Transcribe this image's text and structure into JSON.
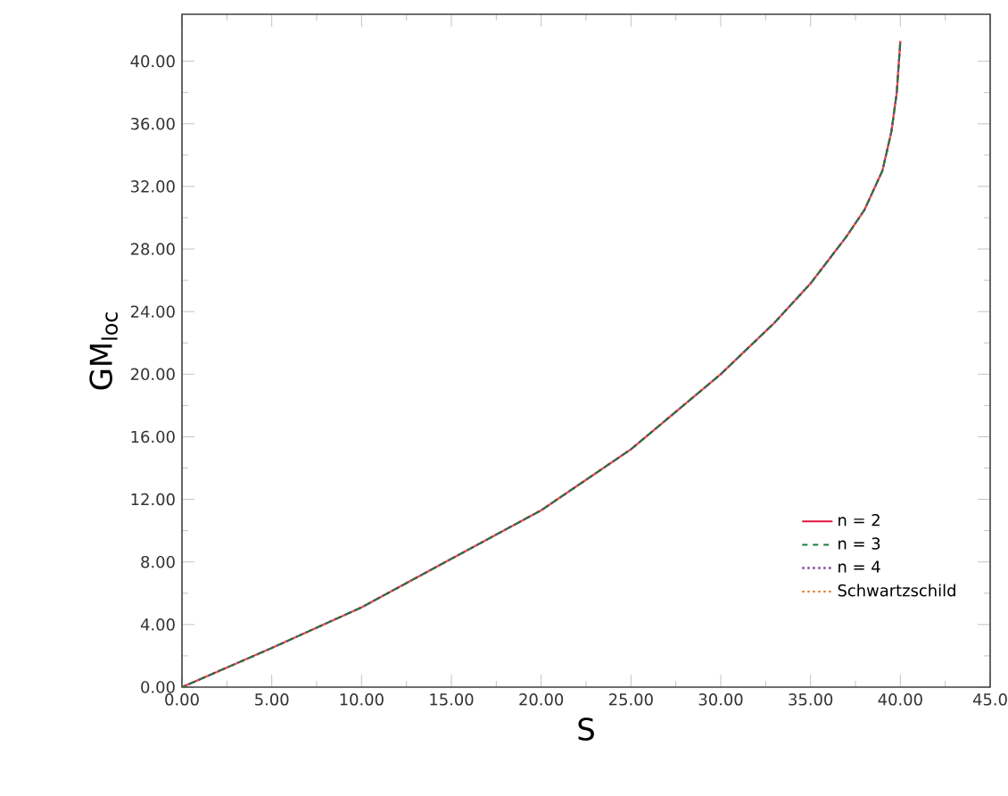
{
  "chart_data": {
    "type": "line",
    "xlabel": "S",
    "ylabel": "GM$_{loc}$",
    "x": [
      0,
      5,
      10,
      15,
      20,
      25,
      30,
      33,
      35,
      36,
      37,
      38,
      39,
      39.5,
      39.8,
      40
    ],
    "series": [
      {
        "name": "n = 2",
        "color": "#e0143c",
        "line_style": "solid",
        "values": [
          0,
          2.5,
          5.1,
          8.2,
          11.3,
          15.2,
          20.0,
          23.3,
          25.8,
          27.3,
          28.8,
          30.5,
          33,
          35.5,
          38,
          41.3
        ]
      },
      {
        "name": "n = 3",
        "color": "#1a7a3a",
        "line_style": "dashed",
        "values": [
          0,
          2.5,
          5.1,
          8.2,
          11.3,
          15.2,
          20.0,
          23.3,
          25.8,
          27.3,
          28.8,
          30.5,
          33,
          35.5,
          38,
          41.3
        ]
      },
      {
        "name": "n = 4",
        "color": "#7b3fa0",
        "line_style": "dotted",
        "values": [
          0,
          2.5,
          5.1,
          8.2,
          11.3,
          15.2,
          20.0,
          23.3,
          25.8,
          27.3,
          28.8,
          30.5,
          33,
          35.5,
          38,
          41.3
        ]
      },
      {
        "name": "Schwartzschild",
        "color": "#e07a2a",
        "line_style": "dotted",
        "values": [
          0,
          2.5,
          5.1,
          8.2,
          11.3,
          15.2,
          20.0,
          23.3,
          25.8,
          27.3,
          28.8,
          30.5,
          33,
          35.5,
          38,
          41.3
        ]
      }
    ],
    "xlim": [
      0,
      45
    ],
    "ylim": [
      0,
      43
    ],
    "xticks": [
      {
        "value": 0,
        "label": "0.00"
      },
      {
        "value": 5,
        "label": "5.00"
      },
      {
        "value": 10,
        "label": "10.00"
      },
      {
        "value": 15,
        "label": "15.00"
      },
      {
        "value": 20,
        "label": "20.00"
      },
      {
        "value": 25,
        "label": "25.00"
      },
      {
        "value": 30,
        "label": "30.00"
      },
      {
        "value": 35,
        "label": "35.00"
      },
      {
        "value": 40,
        "label": "40.00"
      },
      {
        "value": 45,
        "label": "45.0"
      }
    ],
    "yticks": [
      {
        "value": 0,
        "label": "0.00"
      },
      {
        "value": 4,
        "label": "4.00"
      },
      {
        "value": 8,
        "label": "8.00"
      },
      {
        "value": 12,
        "label": "12.00"
      },
      {
        "value": 16,
        "label": "16.00"
      },
      {
        "value": 20,
        "label": "20.00"
      },
      {
        "value": 24,
        "label": "24.00"
      },
      {
        "value": 28,
        "label": "28.00"
      },
      {
        "value": 32,
        "label": "32.00"
      },
      {
        "value": 36,
        "label": "36.00"
      },
      {
        "value": 40,
        "label": "40.00"
      }
    ],
    "legend": "bottom right",
    "grid": false,
    "marker": "none"
  }
}
